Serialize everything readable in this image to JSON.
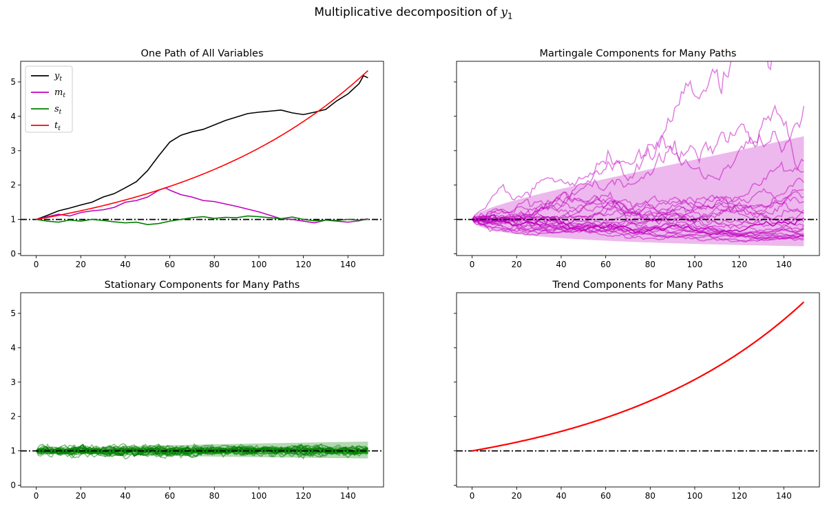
{
  "figure": {
    "suptitle_text": "Multiplicative decomposition of ",
    "suptitle_var": "y",
    "suptitle_sub": "1"
  },
  "chart_data": [
    {
      "type": "line",
      "title": "One Path of All Variables",
      "xlim": [
        -7,
        156
      ],
      "ylim": [
        -0.05,
        5.6
      ],
      "xticks": [
        0,
        20,
        40,
        60,
        80,
        100,
        120,
        140
      ],
      "yticks": [
        0,
        1,
        2,
        3,
        4,
        5
      ],
      "reference_line": {
        "y": 1,
        "style": "dash-dot",
        "color": "#000000"
      },
      "legend": {
        "placement": "upper-left"
      },
      "series": [
        {
          "name": "y",
          "sub": "t",
          "color": "#000000",
          "x": [
            0,
            5,
            10,
            15,
            20,
            25,
            30,
            35,
            40,
            45,
            50,
            55,
            60,
            65,
            70,
            75,
            80,
            85,
            90,
            95,
            100,
            105,
            110,
            115,
            120,
            125,
            130,
            135,
            140,
            145,
            147,
            149
          ],
          "values": [
            1.0,
            1.12,
            1.25,
            1.33,
            1.42,
            1.5,
            1.65,
            1.75,
            1.92,
            2.1,
            2.42,
            2.85,
            3.25,
            3.45,
            3.55,
            3.62,
            3.75,
            3.88,
            3.98,
            4.08,
            4.12,
            4.15,
            4.18,
            4.1,
            4.05,
            4.12,
            4.2,
            4.45,
            4.65,
            4.95,
            5.18,
            5.12
          ]
        },
        {
          "name": "m",
          "sub": "t",
          "color": "#bf00bf",
          "x": [
            0,
            5,
            10,
            15,
            20,
            25,
            30,
            35,
            40,
            45,
            50,
            55,
            58,
            60,
            65,
            70,
            75,
            80,
            85,
            90,
            95,
            100,
            105,
            110,
            115,
            120,
            125,
            130,
            135,
            140,
            145,
            149
          ],
          "values": [
            1.0,
            1.08,
            1.15,
            1.1,
            1.2,
            1.25,
            1.28,
            1.35,
            1.5,
            1.55,
            1.65,
            1.85,
            1.92,
            1.85,
            1.72,
            1.65,
            1.55,
            1.52,
            1.45,
            1.38,
            1.3,
            1.22,
            1.12,
            1.02,
            1.0,
            0.95,
            0.9,
            0.98,
            0.95,
            0.92,
            0.96,
            1.02
          ]
        },
        {
          "name": "s",
          "sub": "t",
          "color": "#008000",
          "x": [
            0,
            5,
            10,
            15,
            20,
            25,
            30,
            35,
            40,
            45,
            50,
            55,
            60,
            65,
            70,
            75,
            80,
            85,
            90,
            95,
            100,
            105,
            110,
            115,
            120,
            125,
            130,
            135,
            140,
            145,
            149
          ],
          "values": [
            1.0,
            0.95,
            0.92,
            0.98,
            0.95,
            1.0,
            0.97,
            0.93,
            0.9,
            0.92,
            0.85,
            0.88,
            0.95,
            1.0,
            1.05,
            1.08,
            1.03,
            1.06,
            1.05,
            1.1,
            1.08,
            1.05,
            1.02,
            1.07,
            1.0,
            0.96,
            0.98,
            0.97,
            1.0,
            0.98,
            1.0
          ]
        },
        {
          "name": "t",
          "sub": "t",
          "color": "#ff0000",
          "form": "exp",
          "start": 1.0,
          "end": 5.33,
          "n": 149
        }
      ]
    },
    {
      "type": "line",
      "title": "Martingale Components for Many Paths",
      "xlim": [
        -7,
        156
      ],
      "ylim": [
        -0.05,
        5.6
      ],
      "xticks": [
        0,
        20,
        40,
        60,
        80,
        100,
        120,
        140
      ],
      "yticks": [
        0,
        1,
        2,
        3,
        4,
        5
      ],
      "reference_line": {
        "y": 1,
        "style": "dash-dot",
        "color": "#000000"
      },
      "band": {
        "color": "#bf00bf",
        "x_end": 149,
        "upper_end": 3.42,
        "lower_end": 0.22
      },
      "path_color": "#bf00bf",
      "path_count": 25
    },
    {
      "type": "line",
      "title": "Stationary Components for Many Paths",
      "xlim": [
        -7,
        156
      ],
      "ylim": [
        -0.05,
        5.6
      ],
      "xticks": [
        0,
        20,
        40,
        60,
        80,
        100,
        120,
        140
      ],
      "yticks": [
        0,
        1,
        2,
        3,
        4,
        5
      ],
      "reference_line": {
        "y": 1,
        "style": "dash-dot",
        "color": "#000000"
      },
      "band": {
        "color": "#008000",
        "x_end": 149,
        "upper_end": 1.27,
        "lower_end": 0.78
      },
      "path_color": "#008000",
      "path_count": 25
    },
    {
      "type": "line",
      "title": "Trend Components for Many Paths",
      "xlim": [
        -7,
        156
      ],
      "ylim": [
        -0.05,
        5.6
      ],
      "xticks": [
        0,
        20,
        40,
        60,
        80,
        100,
        120,
        140
      ],
      "yticks": [
        0,
        1,
        2,
        3,
        4,
        5
      ],
      "reference_line": {
        "y": 1,
        "style": "dash-dot",
        "color": "#000000"
      },
      "series": [
        {
          "color": "#ff0000",
          "form": "exp",
          "start": 1.0,
          "end": 5.33,
          "n": 149
        }
      ]
    }
  ]
}
